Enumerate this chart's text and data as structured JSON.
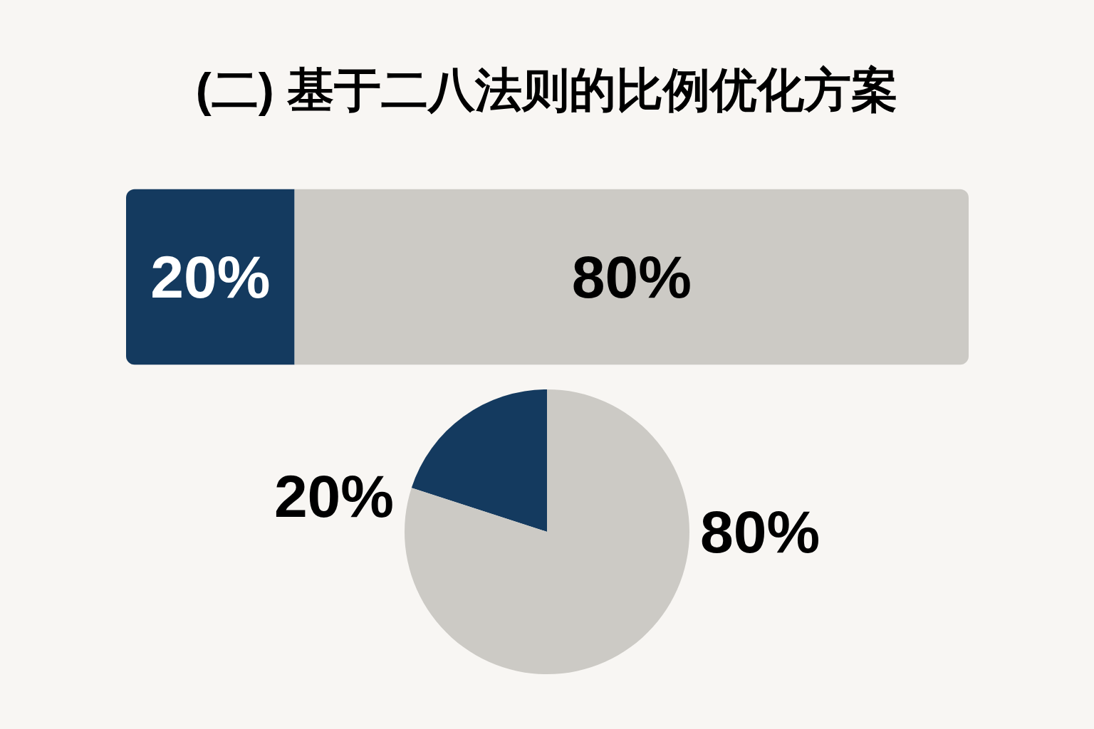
{
  "chart_data": [
    {
      "type": "bar",
      "title": "(二) 基于二八法则的比例优化方案",
      "orientation": "horizontal",
      "stacked": true,
      "categories": [
        null
      ],
      "series": [
        {
          "color": "#143a5f",
          "values": [
            20
          ],
          "value_labels": [
            "20%"
          ]
        },
        {
          "color": "#cccac5",
          "values": [
            80
          ],
          "value_labels": [
            "80%"
          ]
        }
      ]
    },
    {
      "type": "pie",
      "categories": [
        null,
        null
      ],
      "values": [
        20,
        80
      ],
      "colors": [
        "#143a5f",
        "#cccac5"
      ],
      "value_labels": [
        "20%",
        "80%"
      ]
    }
  ]
}
